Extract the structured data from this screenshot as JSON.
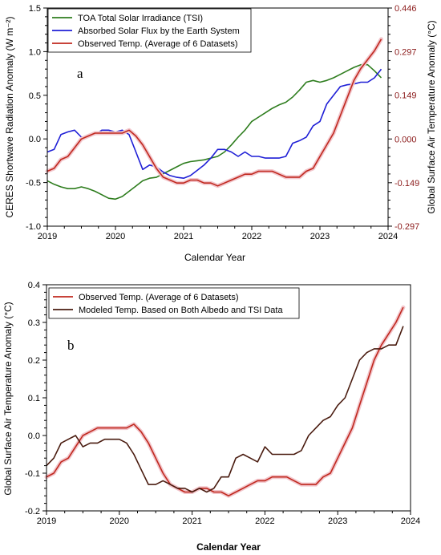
{
  "chart_data": [
    {
      "type": "line",
      "panel_label": "a",
      "xlabel": "Calendar Year",
      "ylabel": "CERES Shortwave Radiation Anomaly (W m⁻²)",
      "y2label": "Global Surface Air Temperature Anomaly (°C)",
      "xlim": [
        2019,
        2024
      ],
      "ylim": [
        -1.0,
        1.5
      ],
      "y2lim": [
        -0.297,
        0.446
      ],
      "x_ticks": [
        "2019",
        "2020",
        "2021",
        "2022",
        "2023",
        "2024"
      ],
      "y_ticks": [
        "-1.0",
        "-0.5",
        "0.0",
        "0.5",
        "1.0",
        "1.5"
      ],
      "y2_ticks": [
        "-0.297",
        "-0.149",
        "0.000",
        "0.149",
        "0.297",
        "0.446"
      ],
      "legend_position": "top-left",
      "grid": false,
      "series": [
        {
          "name": "TOA Total Solar Irradiance (TSI)",
          "color": "#2e7d1e",
          "axis": "left",
          "x": [
            2019.0,
            2019.1,
            2019.2,
            2019.3,
            2019.4,
            2019.5,
            2019.6,
            2019.7,
            2019.8,
            2019.9,
            2020.0,
            2020.1,
            2020.2,
            2020.3,
            2020.4,
            2020.5,
            2020.6,
            2020.7,
            2020.8,
            2020.9,
            2021.0,
            2021.1,
            2021.2,
            2021.3,
            2021.4,
            2021.5,
            2021.6,
            2021.7,
            2021.8,
            2021.9,
            2022.0,
            2022.1,
            2022.2,
            2022.3,
            2022.4,
            2022.5,
            2022.6,
            2022.7,
            2022.8,
            2022.9,
            2023.0,
            2023.1,
            2023.2,
            2023.3,
            2023.4,
            2023.5,
            2023.6,
            2023.7,
            2023.8,
            2023.9
          ],
          "y": [
            -0.48,
            -0.52,
            -0.55,
            -0.57,
            -0.57,
            -0.55,
            -0.57,
            -0.6,
            -0.64,
            -0.68,
            -0.69,
            -0.66,
            -0.6,
            -0.54,
            -0.48,
            -0.45,
            -0.44,
            -0.4,
            -0.36,
            -0.32,
            -0.28,
            -0.26,
            -0.25,
            -0.24,
            -0.22,
            -0.2,
            -0.15,
            -0.07,
            0.02,
            0.1,
            0.2,
            0.25,
            0.3,
            0.35,
            0.39,
            0.42,
            0.48,
            0.56,
            0.65,
            0.67,
            0.65,
            0.67,
            0.7,
            0.74,
            0.78,
            0.82,
            0.85,
            0.85,
            0.78,
            0.7
          ]
        },
        {
          "name": "Absorbed Solar Flux by the Earth System",
          "color": "#1f1fd6",
          "axis": "left",
          "x": [
            2019.0,
            2019.1,
            2019.2,
            2019.3,
            2019.4,
            2019.5,
            2019.6,
            2019.7,
            2019.8,
            2019.9,
            2020.0,
            2020.1,
            2020.2,
            2020.3,
            2020.4,
            2020.5,
            2020.6,
            2020.7,
            2020.8,
            2020.9,
            2021.0,
            2021.1,
            2021.2,
            2021.3,
            2021.4,
            2021.5,
            2021.6,
            2021.7,
            2021.8,
            2021.9,
            2022.0,
            2022.1,
            2022.2,
            2022.3,
            2022.4,
            2022.5,
            2022.6,
            2022.7,
            2022.8,
            2022.9,
            2023.0,
            2023.1,
            2023.2,
            2023.3,
            2023.4,
            2023.5,
            2023.6,
            2023.7,
            2023.8,
            2023.9
          ],
          "y": [
            -0.15,
            -0.12,
            0.05,
            0.08,
            0.1,
            0.02,
            0.03,
            0.05,
            0.1,
            0.1,
            0.08,
            0.1,
            0.05,
            -0.15,
            -0.35,
            -0.3,
            -0.32,
            -0.38,
            -0.42,
            -0.44,
            -0.45,
            -0.42,
            -0.36,
            -0.3,
            -0.22,
            -0.12,
            -0.12,
            -0.15,
            -0.2,
            -0.15,
            -0.2,
            -0.2,
            -0.22,
            -0.22,
            -0.22,
            -0.2,
            -0.05,
            -0.02,
            0.02,
            0.15,
            0.2,
            0.4,
            0.5,
            0.6,
            0.62,
            0.63,
            0.65,
            0.65,
            0.7,
            0.8
          ]
        },
        {
          "name": "Observed Temp. (Average of 6 Datasets)",
          "color": "#c0281e",
          "halo": "#f2c6cc",
          "axis": "right",
          "x": [
            2019.0,
            2019.1,
            2019.2,
            2019.3,
            2019.4,
            2019.5,
            2019.6,
            2019.7,
            2019.8,
            2019.9,
            2020.0,
            2020.1,
            2020.2,
            2020.3,
            2020.4,
            2020.5,
            2020.6,
            2020.7,
            2020.8,
            2020.9,
            2021.0,
            2021.1,
            2021.2,
            2021.3,
            2021.4,
            2021.5,
            2021.6,
            2021.7,
            2021.8,
            2021.9,
            2022.0,
            2022.1,
            2022.2,
            2022.3,
            2022.4,
            2022.5,
            2022.6,
            2022.7,
            2022.8,
            2022.9,
            2023.0,
            2023.1,
            2023.2,
            2023.3,
            2023.4,
            2023.5,
            2023.6,
            2023.7,
            2023.8,
            2023.9
          ],
          "y": [
            -0.11,
            -0.1,
            -0.07,
            -0.06,
            -0.03,
            0.0,
            0.01,
            0.02,
            0.02,
            0.02,
            0.02,
            0.02,
            0.03,
            0.01,
            -0.02,
            -0.06,
            -0.1,
            -0.13,
            -0.14,
            -0.15,
            -0.15,
            -0.14,
            -0.14,
            -0.15,
            -0.15,
            -0.16,
            -0.15,
            -0.14,
            -0.13,
            -0.12,
            -0.12,
            -0.11,
            -0.11,
            -0.11,
            -0.12,
            -0.13,
            -0.13,
            -0.13,
            -0.11,
            -0.1,
            -0.06,
            -0.02,
            0.02,
            0.08,
            0.14,
            0.2,
            0.24,
            0.27,
            0.3,
            0.34
          ]
        }
      ]
    },
    {
      "type": "line",
      "panel_label": "b",
      "xlabel": "Calendar Year",
      "ylabel": "Global Surface Air Temperature Anomaly (°C)",
      "xlim": [
        2019,
        2024
      ],
      "ylim": [
        -0.2,
        0.4
      ],
      "x_ticks": [
        "2019",
        "2020",
        "2021",
        "2022",
        "2023",
        "2024"
      ],
      "y_ticks": [
        "-0.2",
        "-0.1",
        "0.0",
        "0.1",
        "0.2",
        "0.3",
        "0.4"
      ],
      "legend_position": "top-left",
      "grid": false,
      "series": [
        {
          "name": "Observed Temp. (Average of 6 Datasets)",
          "color": "#c0281e",
          "halo": "#f2c6cc",
          "x": [
            2019.0,
            2019.1,
            2019.2,
            2019.3,
            2019.4,
            2019.5,
            2019.6,
            2019.7,
            2019.8,
            2019.9,
            2020.0,
            2020.1,
            2020.2,
            2020.3,
            2020.4,
            2020.5,
            2020.6,
            2020.7,
            2020.8,
            2020.9,
            2021.0,
            2021.1,
            2021.2,
            2021.3,
            2021.4,
            2021.5,
            2021.6,
            2021.7,
            2021.8,
            2021.9,
            2022.0,
            2022.1,
            2022.2,
            2022.3,
            2022.4,
            2022.5,
            2022.6,
            2022.7,
            2022.8,
            2022.9,
            2023.0,
            2023.1,
            2023.2,
            2023.3,
            2023.4,
            2023.5,
            2023.6,
            2023.7,
            2023.8,
            2023.9
          ],
          "y": [
            -0.11,
            -0.1,
            -0.07,
            -0.06,
            -0.03,
            0.0,
            0.01,
            0.02,
            0.02,
            0.02,
            0.02,
            0.02,
            0.03,
            0.01,
            -0.02,
            -0.06,
            -0.1,
            -0.13,
            -0.14,
            -0.15,
            -0.15,
            -0.14,
            -0.14,
            -0.15,
            -0.15,
            -0.16,
            -0.15,
            -0.14,
            -0.13,
            -0.12,
            -0.12,
            -0.11,
            -0.11,
            -0.11,
            -0.12,
            -0.13,
            -0.13,
            -0.13,
            -0.11,
            -0.1,
            -0.06,
            -0.02,
            0.02,
            0.08,
            0.14,
            0.2,
            0.24,
            0.27,
            0.3,
            0.34
          ]
        },
        {
          "name": "Modeled Temp. Based on Both Albedo and TSI Data",
          "color": "#4a1c10",
          "x": [
            2019.0,
            2019.1,
            2019.2,
            2019.3,
            2019.4,
            2019.5,
            2019.6,
            2019.7,
            2019.8,
            2019.9,
            2020.0,
            2020.1,
            2020.2,
            2020.3,
            2020.4,
            2020.5,
            2020.6,
            2020.7,
            2020.8,
            2020.9,
            2021.0,
            2021.1,
            2021.2,
            2021.3,
            2021.4,
            2021.5,
            2021.6,
            2021.7,
            2021.8,
            2021.9,
            2022.0,
            2022.1,
            2022.2,
            2022.3,
            2022.4,
            2022.5,
            2022.6,
            2022.7,
            2022.8,
            2022.9,
            2023.0,
            2023.1,
            2023.2,
            2023.3,
            2023.4,
            2023.5,
            2023.6,
            2023.7,
            2023.8,
            2023.9
          ],
          "y": [
            -0.08,
            -0.06,
            -0.02,
            -0.01,
            0.0,
            -0.03,
            -0.02,
            -0.02,
            -0.01,
            -0.01,
            -0.01,
            -0.02,
            -0.05,
            -0.09,
            -0.13,
            -0.13,
            -0.12,
            -0.13,
            -0.14,
            -0.14,
            -0.15,
            -0.14,
            -0.15,
            -0.14,
            -0.11,
            -0.11,
            -0.06,
            -0.05,
            -0.06,
            -0.07,
            -0.03,
            -0.05,
            -0.05,
            -0.05,
            -0.05,
            -0.04,
            0.0,
            0.02,
            0.04,
            0.05,
            0.08,
            0.1,
            0.15,
            0.2,
            0.22,
            0.23,
            0.23,
            0.24,
            0.24,
            0.29
          ]
        }
      ]
    }
  ]
}
